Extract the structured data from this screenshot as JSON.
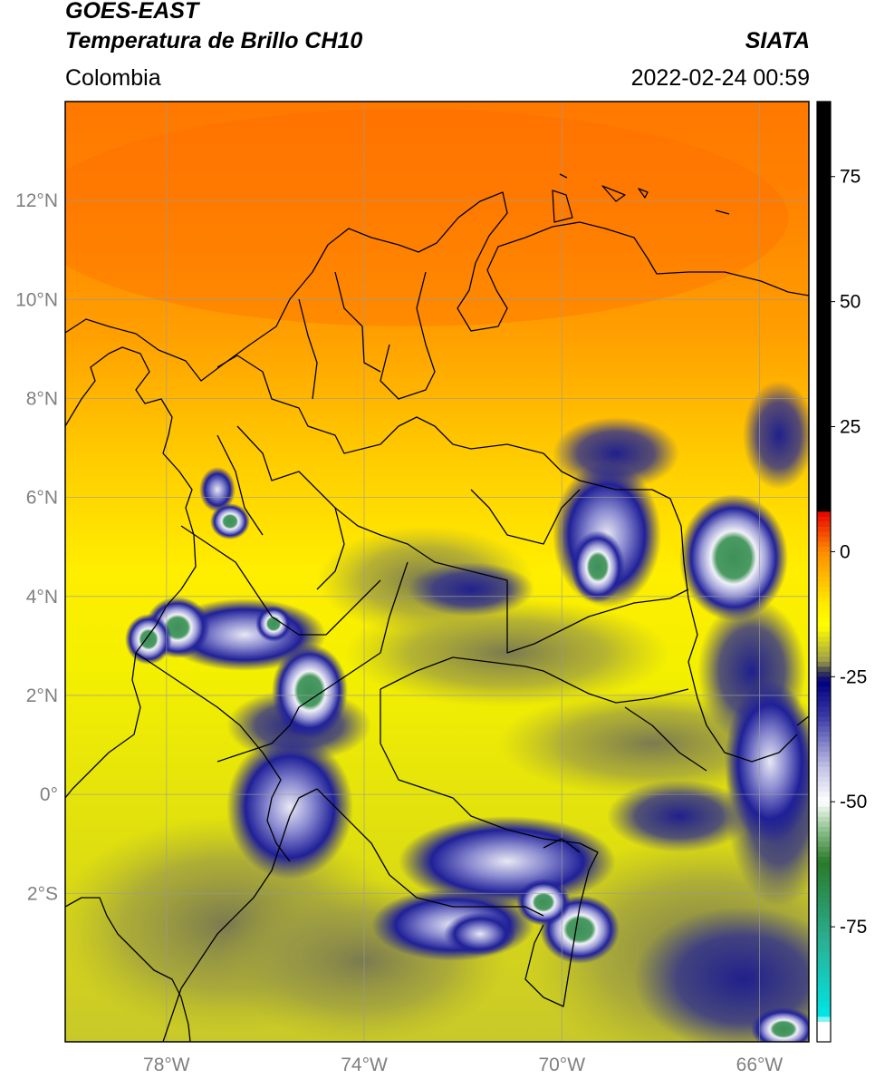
{
  "header": {
    "satellite": "GOES-EAST",
    "product": "Temperatura de Brillo CH10",
    "agency": "SIATA",
    "region": "Colombia",
    "datetime": "2022-02-24 00:59"
  },
  "map": {
    "lat_labels": [
      "12°N",
      "10°N",
      "8°N",
      "6°N",
      "4°N",
      "2°N",
      "0°",
      "2°S"
    ],
    "lat_values": [
      12,
      10,
      8,
      6,
      4,
      2,
      0,
      -2
    ],
    "lon_labels": [
      "78°W",
      "74°W",
      "70°W",
      "66°W"
    ],
    "lon_values": [
      -78,
      -74,
      -70,
      -66
    ],
    "extent": {
      "lon_min": -80.05,
      "lon_max": -65.0,
      "lat_min": -5.0,
      "lat_max": 14.0
    }
  },
  "colorbar": {
    "ticks": [
      "75",
      "50",
      "25",
      "0",
      "-25",
      "-50",
      "-75"
    ],
    "tick_values": [
      75,
      50,
      25,
      0,
      -25,
      -50,
      -75
    ],
    "range": [
      -98,
      90
    ],
    "stops": [
      {
        "v": 90,
        "c": "#000000"
      },
      {
        "v": 8.5,
        "c": "#000000"
      },
      {
        "v": 8,
        "c": "#e60000"
      },
      {
        "v": 0,
        "c": "#ff8c00"
      },
      {
        "v": -10,
        "c": "#ffe600"
      },
      {
        "v": -15,
        "c": "#ffff00"
      },
      {
        "v": -22,
        "c": "#9a9a4a"
      },
      {
        "v": -24,
        "c": "#3a3a52"
      },
      {
        "v": -26,
        "c": "#000080"
      },
      {
        "v": -33,
        "c": "#3a3aa6"
      },
      {
        "v": -43,
        "c": "#c0c0e6"
      },
      {
        "v": -50,
        "c": "#ffffff"
      },
      {
        "v": -55,
        "c": "#99c899"
      },
      {
        "v": -62,
        "c": "#2a7a2a"
      },
      {
        "v": -78,
        "c": "#2ab094"
      },
      {
        "v": -93,
        "c": "#00e6e6"
      },
      {
        "v": -94,
        "c": "#ffffff"
      },
      {
        "v": -98,
        "c": "#ffffff"
      }
    ]
  },
  "colors": {
    "warm": "#ff8a00",
    "mid": "#ffdd00",
    "cold_yellow": "#ffff00",
    "olive": "#b9b939",
    "navy": "#1a1a8a",
    "cloud_white": "#e6e6f2",
    "cloud_green": "#3f8f5a",
    "teal": "#2fb59a"
  }
}
